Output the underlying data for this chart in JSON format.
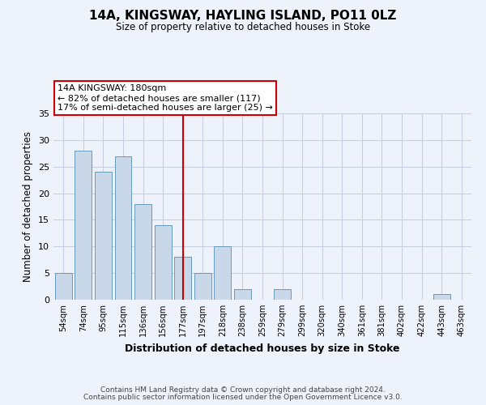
{
  "title": "14A, KINGSWAY, HAYLING ISLAND, PO11 0LZ",
  "subtitle": "Size of property relative to detached houses in Stoke",
  "xlabel": "Distribution of detached houses by size in Stoke",
  "ylabel": "Number of detached properties",
  "categories": [
    "54sqm",
    "74sqm",
    "95sqm",
    "115sqm",
    "136sqm",
    "156sqm",
    "177sqm",
    "197sqm",
    "218sqm",
    "238sqm",
    "259sqm",
    "279sqm",
    "299sqm",
    "320sqm",
    "340sqm",
    "361sqm",
    "381sqm",
    "402sqm",
    "422sqm",
    "443sqm",
    "463sqm"
  ],
  "values": [
    5,
    28,
    24,
    27,
    18,
    14,
    8,
    5,
    10,
    2,
    0,
    2,
    0,
    0,
    0,
    0,
    0,
    0,
    0,
    1,
    0
  ],
  "bar_color": "#c8d8e8",
  "bar_edge_color": "#6699bb",
  "vline_x_index": 6,
  "vline_color": "#cc0000",
  "annotation_title": "14A KINGSWAY: 180sqm",
  "annotation_line1": "← 82% of detached houses are smaller (117)",
  "annotation_line2": "17% of semi-detached houses are larger (25) →",
  "annotation_box_color": "#cc0000",
  "ylim": [
    0,
    35
  ],
  "yticks": [
    0,
    5,
    10,
    15,
    20,
    25,
    30,
    35
  ],
  "bg_color": "#eef2fb",
  "grid_color": "#c8cfe0",
  "footer_line1": "Contains HM Land Registry data © Crown copyright and database right 2024.",
  "footer_line2": "Contains public sector information licensed under the Open Government Licence v3.0."
}
